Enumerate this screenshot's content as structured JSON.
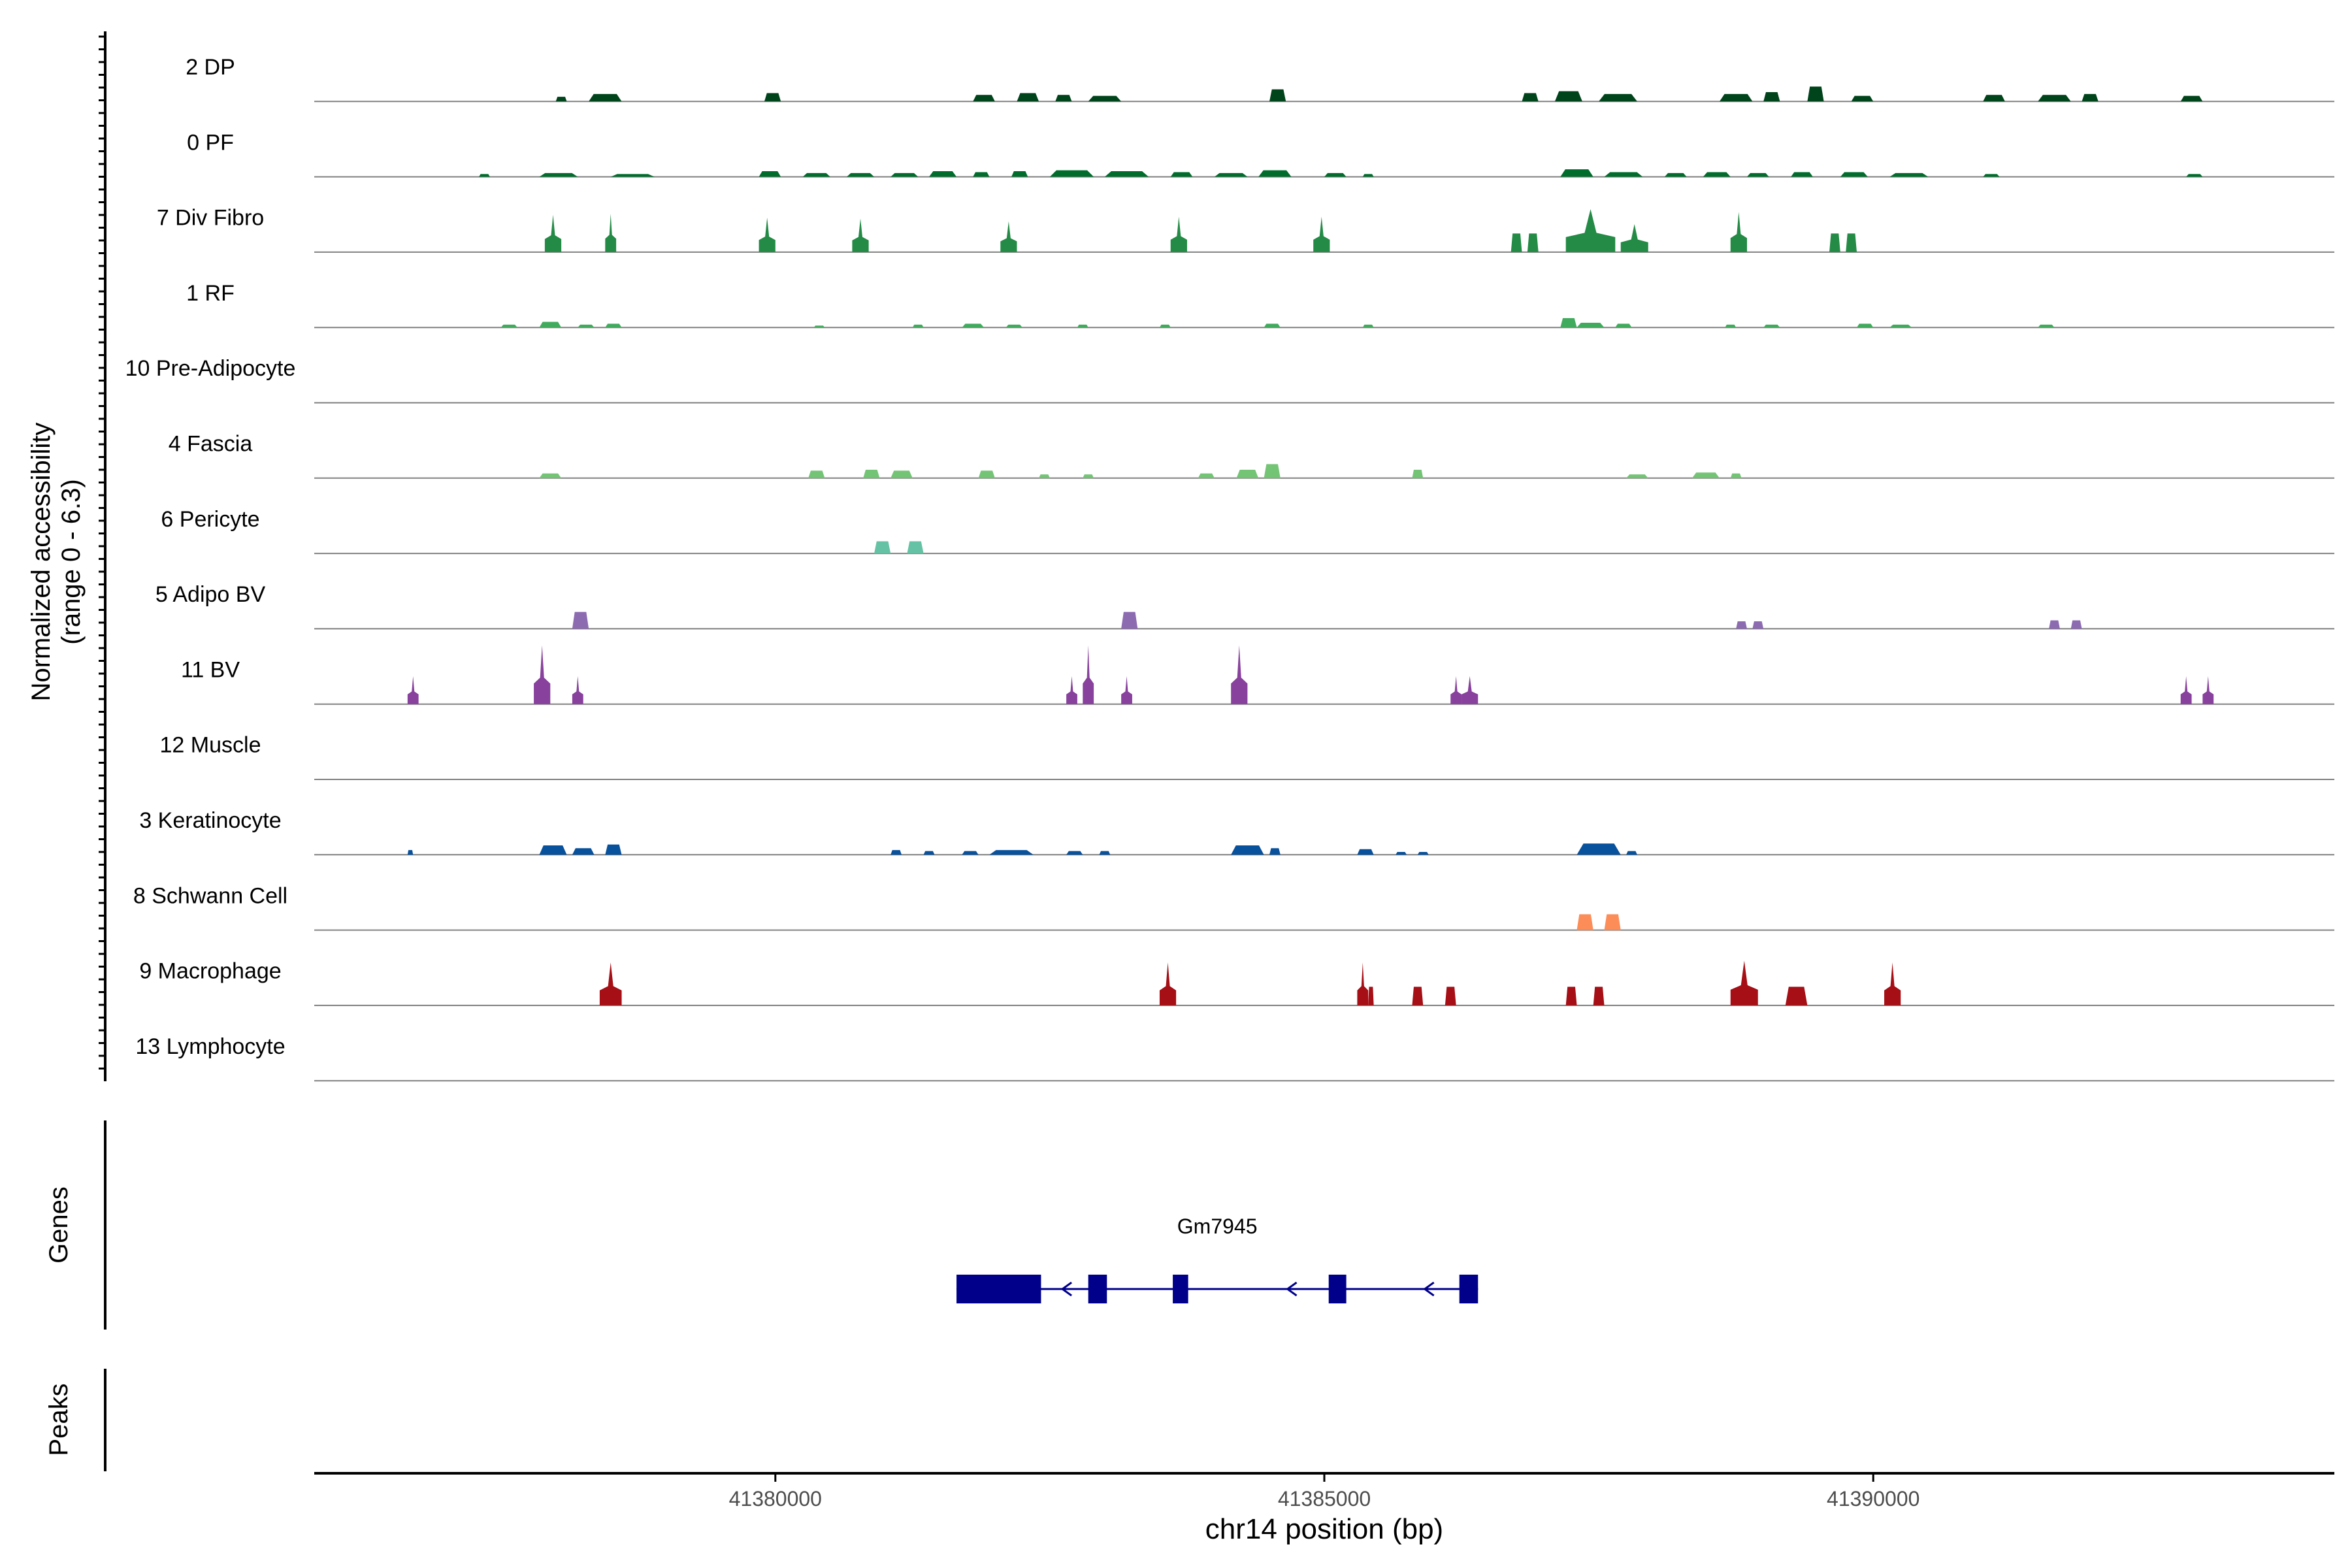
{
  "chart_data": {
    "type": "area",
    "title": "",
    "ylabel_line1": "Normalized accessibility",
    "ylabel_line2": "(range 0 - 6.3)",
    "genes_label": "Genes",
    "peaks_label": "Peaks",
    "xlabel": "chr14 position (bp)",
    "xlim": [
      41375800,
      41394200
    ],
    "ylim": [
      0,
      6.3
    ],
    "x_ticks": [
      41380000,
      41385000,
      41390000
    ],
    "x_tick_labels": [
      "41380000",
      "41385000",
      "41390000"
    ],
    "tracks": [
      {
        "name": "2 DP",
        "color": "#00441b",
        "peaks": [
          [
            41378000,
            41378100,
            0.5
          ],
          [
            41378300,
            41378600,
            0.8
          ],
          [
            41379900,
            41380050,
            0.9
          ],
          [
            41381800,
            41382000,
            0.7
          ],
          [
            41382200,
            41382400,
            0.9
          ],
          [
            41382550,
            41382700,
            0.7
          ],
          [
            41382850,
            41383150,
            0.6
          ],
          [
            41384500,
            41384650,
            1.3
          ],
          [
            41386800,
            41386950,
            0.9
          ],
          [
            41387100,
            41387350,
            1.1
          ],
          [
            41387500,
            41387850,
            0.8
          ],
          [
            41388600,
            41388900,
            0.8
          ],
          [
            41389000,
            41389150,
            1.0
          ],
          [
            41389400,
            41389550,
            1.6
          ],
          [
            41389800,
            41390000,
            0.6
          ],
          [
            41391000,
            41391200,
            0.7
          ],
          [
            41391500,
            41391800,
            0.7
          ],
          [
            41391900,
            41392050,
            0.8
          ],
          [
            41392800,
            41393000,
            0.6
          ]
        ]
      },
      {
        "name": "0 PF",
        "color": "#006d2c",
        "peaks": [
          [
            41377300,
            41377400,
            0.3
          ],
          [
            41377850,
            41378200,
            0.4
          ],
          [
            41378500,
            41378900,
            0.3
          ],
          [
            41379850,
            41380050,
            0.6
          ],
          [
            41380250,
            41380500,
            0.4
          ],
          [
            41380650,
            41380900,
            0.4
          ],
          [
            41381050,
            41381300,
            0.4
          ],
          [
            41381400,
            41381650,
            0.6
          ],
          [
            41381800,
            41381950,
            0.5
          ],
          [
            41382150,
            41382300,
            0.6
          ],
          [
            41382500,
            41382900,
            0.7
          ],
          [
            41383000,
            41383400,
            0.6
          ],
          [
            41383600,
            41383800,
            0.5
          ],
          [
            41384000,
            41384300,
            0.4
          ],
          [
            41384400,
            41384700,
            0.7
          ],
          [
            41385000,
            41385200,
            0.4
          ],
          [
            41385350,
            41385450,
            0.3
          ],
          [
            41387150,
            41387450,
            0.8
          ],
          [
            41387550,
            41387900,
            0.5
          ],
          [
            41388100,
            41388300,
            0.4
          ],
          [
            41388450,
            41388700,
            0.5
          ],
          [
            41388850,
            41389050,
            0.4
          ],
          [
            41389250,
            41389450,
            0.5
          ],
          [
            41389700,
            41389950,
            0.5
          ],
          [
            41390150,
            41390500,
            0.4
          ],
          [
            41391000,
            41391150,
            0.3
          ],
          [
            41392850,
            41393000,
            0.3
          ]
        ]
      },
      {
        "name": "7 Div Fibro",
        "color": "#238b45",
        "peaks": [
          [
            41377900,
            41378050,
            4.0
          ],
          [
            41378450,
            41378550,
            4.1
          ],
          [
            41379850,
            41380000,
            3.7
          ],
          [
            41380700,
            41380850,
            3.6
          ],
          [
            41382050,
            41382200,
            3.3
          ],
          [
            41383600,
            41383750,
            3.8
          ],
          [
            41384900,
            41385050,
            3.8
          ],
          [
            41386700,
            41386800,
            2.0
          ],
          [
            41386850,
            41386950,
            2.0
          ],
          [
            41387200,
            41387650,
            4.6
          ],
          [
            41387700,
            41387950,
            3.0
          ],
          [
            41388700,
            41388850,
            4.3
          ],
          [
            41389600,
            41389700,
            2.0
          ],
          [
            41389750,
            41389850,
            2.0
          ]
        ]
      },
      {
        "name": "1 RF",
        "color": "#41ab5d",
        "peaks": [
          [
            41377500,
            41377650,
            0.3
          ],
          [
            41377850,
            41378050,
            0.6
          ],
          [
            41378200,
            41378350,
            0.3
          ],
          [
            41378450,
            41378600,
            0.4
          ],
          [
            41380350,
            41380450,
            0.2
          ],
          [
            41381250,
            41381350,
            0.3
          ],
          [
            41381700,
            41381900,
            0.4
          ],
          [
            41382100,
            41382250,
            0.3
          ],
          [
            41382750,
            41382850,
            0.3
          ],
          [
            41383500,
            41383600,
            0.3
          ],
          [
            41384450,
            41384600,
            0.4
          ],
          [
            41385350,
            41385450,
            0.3
          ],
          [
            41387150,
            41387300,
            1.0
          ],
          [
            41387300,
            41387550,
            0.5
          ],
          [
            41387650,
            41387800,
            0.4
          ],
          [
            41388650,
            41388750,
            0.3
          ],
          [
            41389000,
            41389150,
            0.3
          ],
          [
            41389850,
            41390000,
            0.4
          ],
          [
            41390150,
            41390350,
            0.3
          ],
          [
            41391500,
            41391650,
            0.3
          ]
        ]
      },
      {
        "name": "10 Pre-Adipocyte",
        "color": "#74c476",
        "peaks": []
      },
      {
        "name": "4 Fascia",
        "color": "#74c476",
        "peaks": [
          [
            41377850,
            41378050,
            0.5
          ],
          [
            41380300,
            41380450,
            0.8
          ],
          [
            41380800,
            41380950,
            0.9
          ],
          [
            41381050,
            41381250,
            0.8
          ],
          [
            41381850,
            41382000,
            0.8
          ],
          [
            41382400,
            41382500,
            0.4
          ],
          [
            41382800,
            41382900,
            0.4
          ],
          [
            41383850,
            41384000,
            0.5
          ],
          [
            41384200,
            41384400,
            0.9
          ],
          [
            41384450,
            41384600,
            1.5
          ],
          [
            41385800,
            41385900,
            0.9
          ],
          [
            41387750,
            41387950,
            0.4
          ],
          [
            41388350,
            41388600,
            0.6
          ],
          [
            41388700,
            41388800,
            0.5
          ]
        ]
      },
      {
        "name": "6 Pericyte",
        "color": "#66c2a4",
        "peaks": [
          [
            41380900,
            41381050,
            1.3
          ],
          [
            41381200,
            41381350,
            1.3
          ]
        ]
      },
      {
        "name": "5 Adipo BV",
        "color": "#8c6bb1",
        "peaks": [
          [
            41378150,
            41378300,
            1.8
          ],
          [
            41383150,
            41383300,
            1.8
          ],
          [
            41388750,
            41388850,
            0.8
          ],
          [
            41388900,
            41389000,
            0.8
          ],
          [
            41391600,
            41391700,
            0.9
          ],
          [
            41391800,
            41391900,
            0.9
          ]
        ]
      },
      {
        "name": "11 BV",
        "color": "#88419d",
        "peaks": [
          [
            41376650,
            41376750,
            3.0
          ],
          [
            41377800,
            41377950,
            6.3
          ],
          [
            41378150,
            41378250,
            3.0
          ],
          [
            41382650,
            41382750,
            3.0
          ],
          [
            41382800,
            41382900,
            6.3
          ],
          [
            41383150,
            41383250,
            3.0
          ],
          [
            41384150,
            41384300,
            6.3
          ],
          [
            41386150,
            41386250,
            3.0
          ],
          [
            41386250,
            41386400,
            3.0
          ],
          [
            41392800,
            41392900,
            3.0
          ],
          [
            41393000,
            41393100,
            3.0
          ]
        ]
      },
      {
        "name": "12 Muscle",
        "color": "#88419d",
        "peaks": []
      },
      {
        "name": "3 Keratinocyte",
        "color": "#08519c",
        "peaks": [
          [
            41376650,
            41376700,
            0.5
          ],
          [
            41377850,
            41378100,
            1.0
          ],
          [
            41378150,
            41378350,
            0.7
          ],
          [
            41378450,
            41378600,
            1.1
          ],
          [
            41381050,
            41381150,
            0.5
          ],
          [
            41381350,
            41381450,
            0.4
          ],
          [
            41381700,
            41381850,
            0.4
          ],
          [
            41381950,
            41382350,
            0.5
          ],
          [
            41382650,
            41382800,
            0.4
          ],
          [
            41382950,
            41383050,
            0.4
          ],
          [
            41384150,
            41384450,
            1.0
          ],
          [
            41384500,
            41384600,
            0.7
          ],
          [
            41385300,
            41385450,
            0.6
          ],
          [
            41385650,
            41385750,
            0.3
          ],
          [
            41385850,
            41385950,
            0.3
          ],
          [
            41387300,
            41387700,
            1.2
          ],
          [
            41387750,
            41387850,
            0.4
          ]
        ]
      },
      {
        "name": "8 Schwann Cell",
        "color": "#fc8d59",
        "peaks": [
          [
            41387300,
            41387450,
            1.7
          ],
          [
            41387550,
            41387700,
            1.7
          ]
        ]
      },
      {
        "name": "9 Macrophage",
        "color": "#a50f15",
        "peaks": [
          [
            41378400,
            41378600,
            4.6
          ],
          [
            41383500,
            41383650,
            4.6
          ],
          [
            41385300,
            41385400,
            4.6
          ],
          [
            41385400,
            41385450,
            2.0
          ],
          [
            41385800,
            41385900,
            2.0
          ],
          [
            41386100,
            41386200,
            2.0
          ],
          [
            41387200,
            41387300,
            2.0
          ],
          [
            41387450,
            41387550,
            2.0
          ],
          [
            41388700,
            41388950,
            4.8
          ],
          [
            41389200,
            41389400,
            2.0
          ],
          [
            41390100,
            41390250,
            4.6
          ]
        ]
      },
      {
        "name": "13 Lymphocyte",
        "color": "#a50f15",
        "peaks": []
      }
    ],
    "gene": {
      "name": "Gm7945",
      "color": "#00008b",
      "strand": "-",
      "start": 41381650,
      "end": 41386400,
      "exons": [
        [
          41381650,
          41382420
        ],
        [
          41382850,
          41383020
        ],
        [
          41383620,
          41383760
        ],
        [
          41385040,
          41385200
        ],
        [
          41386230,
          41386400
        ]
      ],
      "arrows": [
        41382650,
        41384700,
        41385950
      ]
    }
  }
}
